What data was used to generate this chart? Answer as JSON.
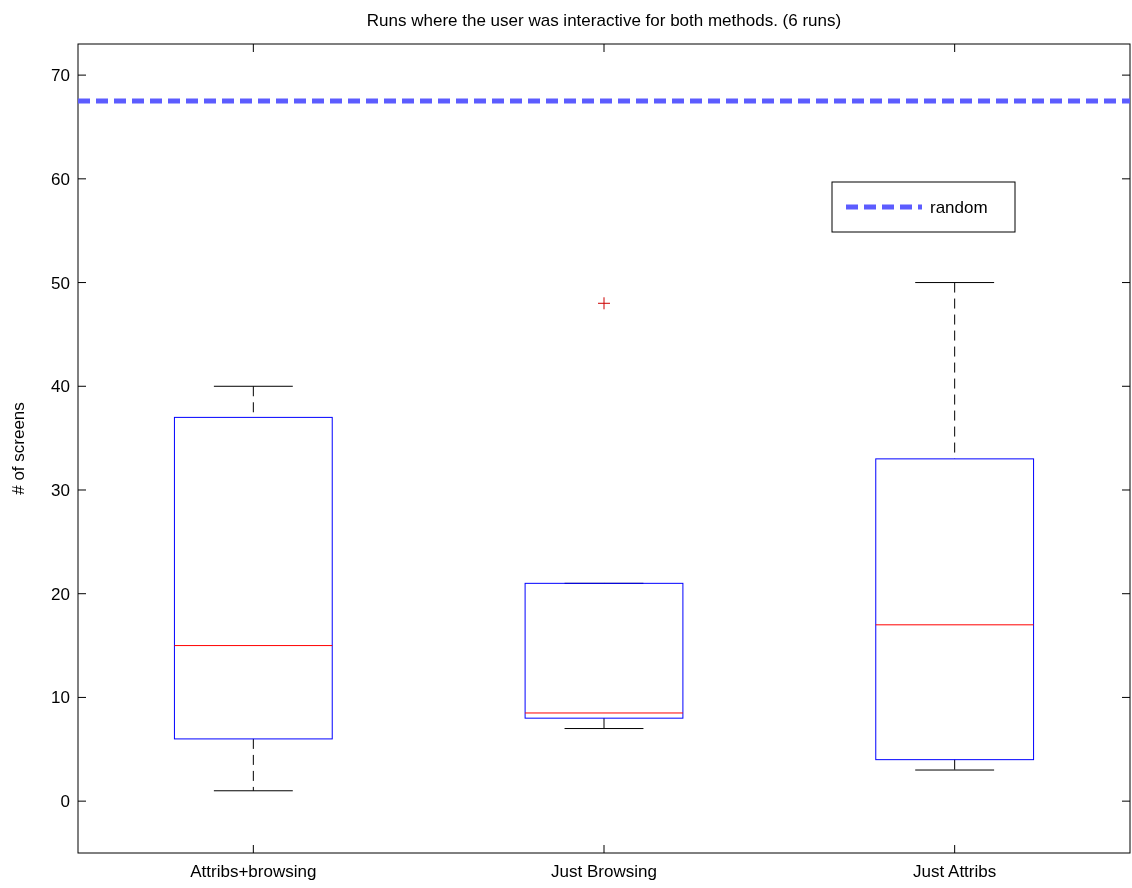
{
  "chart_data": {
    "type": "box",
    "title": "Runs where the user was interactive for both methods. (6 runs)",
    "ylabel": "# of screens",
    "categories": [
      "Attribs+browsing",
      "Just Browsing",
      "Just Attribs"
    ],
    "boxes": [
      {
        "low": 1,
        "q1": 6,
        "median": 15,
        "q3": 37,
        "high": 40
      },
      {
        "low": 7,
        "q1": 8,
        "median": 8.5,
        "q3": 21,
        "high": 21,
        "outliers": [
          48
        ]
      },
      {
        "low": 3,
        "q1": 4,
        "median": 17,
        "q3": 33,
        "high": 50
      }
    ],
    "color": "#0000ff",
    "ylim": [
      -5,
      73
    ],
    "yticks": [
      0,
      10,
      20,
      30,
      40,
      50,
      60,
      70
    ],
    "ref_lines": [
      {
        "axis": "y",
        "value": 67.5,
        "label": "random",
        "color": "#5c5cff",
        "line_style": "dashed"
      }
    ],
    "legend": "top right",
    "grid": false
  }
}
